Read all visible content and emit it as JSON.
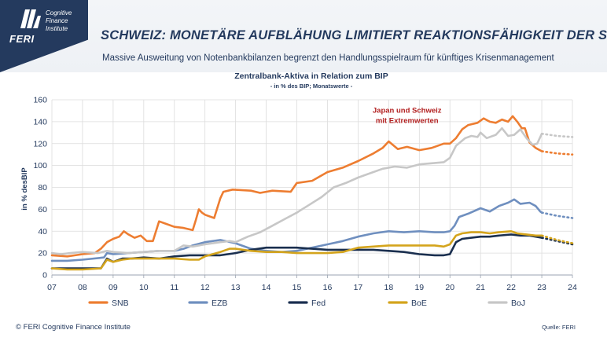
{
  "logo": {
    "brand": "FERI",
    "tagline": "Cognitive Finance Institute",
    "color": "#243a5e"
  },
  "header": {
    "title": "SCHWEIZ: MONETÄRE AUFBLÄHUNG LIMITIERT REAKTIONSFÄHIGKEIT DER SNB",
    "subtitle": "Massive Ausweitung von Notenbankbilanzen begrenzt den Handlungsspielraum für künftiges Krisenmanagement"
  },
  "footer": {
    "copyright": "© FERI Cognitive Finance Institute",
    "source": "Quelle: FERI"
  },
  "chart_data": {
    "type": "line",
    "title": "Zentralbank-Aktiva  in Relation zum BIP",
    "subtitle": "- in % des BIP; Monatswerte -",
    "ylabel": "in % desBIP",
    "xlabel": "",
    "ylim": [
      0,
      160
    ],
    "xlim": [
      7,
      24
    ],
    "yticks": [
      "0",
      "20",
      "40",
      "60",
      "80",
      "100",
      "120",
      "140",
      "160"
    ],
    "xticks": [
      "07",
      "08",
      "09",
      "10",
      "11",
      "12",
      "13",
      "14",
      "15",
      "16",
      "17",
      "18",
      "19",
      "20",
      "21",
      "22",
      "23",
      "24"
    ],
    "grid": true,
    "legend_position": "bottom",
    "annotation": {
      "text_line1": "Japan und Schweiz",
      "text_line2": "mit Extremwerten",
      "x": 18.6,
      "y": 148,
      "color": "#b21f1f"
    },
    "series": [
      {
        "name": "SNB",
        "color": "#ed7d31",
        "points": [
          [
            7.0,
            18
          ],
          [
            7.5,
            17
          ],
          [
            8.0,
            19
          ],
          [
            8.4,
            20
          ],
          [
            8.6,
            24
          ],
          [
            8.8,
            30
          ],
          [
            9.0,
            33
          ],
          [
            9.2,
            35
          ],
          [
            9.35,
            40
          ],
          [
            9.5,
            37
          ],
          [
            9.7,
            34
          ],
          [
            9.9,
            36
          ],
          [
            10.1,
            31
          ],
          [
            10.3,
            31
          ],
          [
            10.5,
            49
          ],
          [
            10.7,
            47
          ],
          [
            11.0,
            44
          ],
          [
            11.3,
            43
          ],
          [
            11.6,
            41
          ],
          [
            11.7,
            50
          ],
          [
            11.8,
            60
          ],
          [
            11.9,
            57
          ],
          [
            12.0,
            55
          ],
          [
            12.3,
            52
          ],
          [
            12.5,
            70
          ],
          [
            12.6,
            76
          ],
          [
            12.9,
            78
          ],
          [
            13.5,
            77
          ],
          [
            13.8,
            75
          ],
          [
            14.2,
            77
          ],
          [
            14.8,
            76
          ],
          [
            15.0,
            84
          ],
          [
            15.5,
            86
          ],
          [
            16.0,
            94
          ],
          [
            16.5,
            98
          ],
          [
            17.0,
            104
          ],
          [
            17.5,
            111
          ],
          [
            17.8,
            116
          ],
          [
            18.0,
            122
          ],
          [
            18.3,
            115
          ],
          [
            18.6,
            117
          ],
          [
            19.0,
            114
          ],
          [
            19.4,
            116
          ],
          [
            19.8,
            120
          ],
          [
            20.0,
            120
          ],
          [
            20.2,
            125
          ],
          [
            20.4,
            133
          ],
          [
            20.6,
            137
          ],
          [
            20.9,
            139
          ],
          [
            21.1,
            143
          ],
          [
            21.3,
            140
          ],
          [
            21.5,
            139
          ],
          [
            21.7,
            142
          ],
          [
            21.9,
            140
          ],
          [
            22.05,
            145
          ],
          [
            22.2,
            140
          ],
          [
            22.35,
            134
          ],
          [
            22.45,
            134
          ],
          [
            22.6,
            121
          ],
          [
            22.8,
            116
          ],
          [
            23.0,
            113
          ]
        ]
      },
      {
        "name": "SNB Prognose",
        "color": "#ed7d31",
        "dashed": true,
        "points": [
          [
            23.0,
            113
          ],
          [
            23.5,
            111
          ],
          [
            24.0,
            110
          ]
        ]
      },
      {
        "name": "EZB",
        "color": "#6f8fbf",
        "points": [
          [
            7.0,
            13
          ],
          [
            7.5,
            13
          ],
          [
            8.0,
            14
          ],
          [
            8.7,
            16
          ],
          [
            8.8,
            20
          ],
          [
            9.0,
            19
          ],
          [
            10.0,
            21
          ],
          [
            10.5,
            22
          ],
          [
            11.0,
            22
          ],
          [
            11.3,
            24
          ],
          [
            11.6,
            27
          ],
          [
            12.0,
            30
          ],
          [
            12.5,
            32
          ],
          [
            13.0,
            29
          ],
          [
            13.5,
            24
          ],
          [
            14.0,
            22
          ],
          [
            14.5,
            21
          ],
          [
            15.0,
            22
          ],
          [
            15.5,
            25
          ],
          [
            16.0,
            28
          ],
          [
            16.5,
            31
          ],
          [
            17.0,
            35
          ],
          [
            17.5,
            38
          ],
          [
            18.0,
            40
          ],
          [
            18.5,
            39
          ],
          [
            19.0,
            40
          ],
          [
            19.5,
            39
          ],
          [
            19.8,
            39
          ],
          [
            20.0,
            40
          ],
          [
            20.15,
            45
          ],
          [
            20.3,
            53
          ],
          [
            20.6,
            56
          ],
          [
            21.0,
            61
          ],
          [
            21.3,
            58
          ],
          [
            21.6,
            63
          ],
          [
            21.9,
            66
          ],
          [
            22.1,
            69
          ],
          [
            22.3,
            65
          ],
          [
            22.6,
            66
          ],
          [
            22.8,
            63
          ],
          [
            22.95,
            58
          ],
          [
            23.0,
            57
          ]
        ]
      },
      {
        "name": "EZB Prognose",
        "color": "#6f8fbf",
        "dashed": true,
        "points": [
          [
            23.0,
            57
          ],
          [
            23.5,
            54
          ],
          [
            24.0,
            52
          ]
        ]
      },
      {
        "name": "Fed",
        "color": "#1a2f4f",
        "points": [
          [
            7.0,
            6
          ],
          [
            7.5,
            6
          ],
          [
            8.0,
            6
          ],
          [
            8.6,
            6
          ],
          [
            8.8,
            15
          ],
          [
            9.0,
            12
          ],
          [
            9.3,
            15
          ],
          [
            9.6,
            15
          ],
          [
            10.0,
            16
          ],
          [
            10.5,
            15
          ],
          [
            11.0,
            17
          ],
          [
            11.5,
            18
          ],
          [
            12.0,
            18
          ],
          [
            12.5,
            18
          ],
          [
            13.0,
            20
          ],
          [
            13.5,
            23
          ],
          [
            14.0,
            25
          ],
          [
            14.5,
            25
          ],
          [
            15.0,
            25
          ],
          [
            15.5,
            24
          ],
          [
            16.0,
            23
          ],
          [
            16.5,
            23
          ],
          [
            17.0,
            23
          ],
          [
            17.5,
            23
          ],
          [
            18.0,
            22
          ],
          [
            18.5,
            21
          ],
          [
            19.0,
            19
          ],
          [
            19.5,
            18
          ],
          [
            19.8,
            18
          ],
          [
            20.0,
            19
          ],
          [
            20.2,
            30
          ],
          [
            20.4,
            33
          ],
          [
            20.7,
            34
          ],
          [
            21.0,
            35
          ],
          [
            21.3,
            35
          ],
          [
            21.6,
            36
          ],
          [
            22.0,
            37
          ],
          [
            22.3,
            36
          ],
          [
            22.6,
            36
          ],
          [
            23.0,
            34
          ]
        ]
      },
      {
        "name": "Fed Prognose",
        "color": "#1a2f4f",
        "dashed": true,
        "points": [
          [
            23.0,
            34
          ],
          [
            23.5,
            31
          ],
          [
            24.0,
            28
          ]
        ]
      },
      {
        "name": "BoE",
        "color": "#d4a41c",
        "points": [
          [
            7.0,
            6
          ],
          [
            7.5,
            5
          ],
          [
            8.0,
            5
          ],
          [
            8.6,
            6
          ],
          [
            8.8,
            14
          ],
          [
            9.0,
            12
          ],
          [
            9.3,
            14
          ],
          [
            9.6,
            15
          ],
          [
            10.0,
            15
          ],
          [
            10.5,
            15
          ],
          [
            11.0,
            15
          ],
          [
            11.5,
            14
          ],
          [
            11.8,
            14
          ],
          [
            12.0,
            17
          ],
          [
            12.5,
            21
          ],
          [
            12.8,
            24
          ],
          [
            13.0,
            24
          ],
          [
            13.5,
            22
          ],
          [
            14.0,
            21
          ],
          [
            14.5,
            21
          ],
          [
            15.0,
            20
          ],
          [
            15.5,
            20
          ],
          [
            16.0,
            20
          ],
          [
            16.5,
            21
          ],
          [
            17.0,
            25
          ],
          [
            17.5,
            26
          ],
          [
            18.0,
            27
          ],
          [
            18.5,
            27
          ],
          [
            19.0,
            27
          ],
          [
            19.5,
            27
          ],
          [
            19.8,
            26
          ],
          [
            20.0,
            28
          ],
          [
            20.2,
            36
          ],
          [
            20.4,
            38
          ],
          [
            20.7,
            39
          ],
          [
            21.0,
            39
          ],
          [
            21.3,
            38
          ],
          [
            21.6,
            39
          ],
          [
            22.0,
            40
          ],
          [
            22.2,
            38
          ],
          [
            22.5,
            37
          ],
          [
            22.8,
            36
          ],
          [
            23.0,
            36
          ]
        ]
      },
      {
        "name": "BoE Prognose",
        "color": "#d4a41c",
        "dashed": true,
        "points": [
          [
            23.0,
            36
          ],
          [
            23.5,
            32
          ],
          [
            24.0,
            29
          ]
        ]
      },
      {
        "name": "BoJ",
        "color": "#c7c7c7",
        "points": [
          [
            7.0,
            20
          ],
          [
            7.3,
            19
          ],
          [
            7.6,
            20
          ],
          [
            8.0,
            21
          ],
          [
            8.5,
            20
          ],
          [
            8.8,
            22
          ],
          [
            9.0,
            21
          ],
          [
            9.5,
            20
          ],
          [
            10.0,
            21
          ],
          [
            10.5,
            22
          ],
          [
            11.0,
            22
          ],
          [
            11.3,
            27
          ],
          [
            11.6,
            26
          ],
          [
            12.0,
            28
          ],
          [
            12.5,
            30
          ],
          [
            12.8,
            31
          ],
          [
            13.0,
            30
          ],
          [
            13.4,
            35
          ],
          [
            13.8,
            39
          ],
          [
            14.2,
            45
          ],
          [
            14.6,
            51
          ],
          [
            15.0,
            57
          ],
          [
            15.4,
            64
          ],
          [
            15.8,
            71
          ],
          [
            16.2,
            80
          ],
          [
            16.6,
            84
          ],
          [
            17.0,
            89
          ],
          [
            17.4,
            93
          ],
          [
            17.8,
            97
          ],
          [
            18.2,
            99
          ],
          [
            18.6,
            98
          ],
          [
            19.0,
            101
          ],
          [
            19.4,
            102
          ],
          [
            19.8,
            103
          ],
          [
            20.0,
            107
          ],
          [
            20.2,
            118
          ],
          [
            20.5,
            125
          ],
          [
            20.7,
            127
          ],
          [
            20.9,
            126
          ],
          [
            21.0,
            130
          ],
          [
            21.2,
            125
          ],
          [
            21.5,
            128
          ],
          [
            21.7,
            134
          ],
          [
            21.9,
            127
          ],
          [
            22.1,
            128
          ],
          [
            22.3,
            133
          ],
          [
            22.5,
            125
          ],
          [
            22.7,
            119
          ],
          [
            22.85,
            120
          ],
          [
            23.0,
            129
          ]
        ]
      },
      {
        "name": "BoJ Prognose",
        "color": "#c7c7c7",
        "dashed": true,
        "points": [
          [
            23.0,
            129
          ],
          [
            23.5,
            127
          ],
          [
            24.0,
            126
          ]
        ]
      }
    ],
    "legend": [
      {
        "label": "SNB",
        "color": "#ed7d31"
      },
      {
        "label": "EZB",
        "color": "#6f8fbf"
      },
      {
        "label": "Fed",
        "color": "#1a2f4f"
      },
      {
        "label": "BoE",
        "color": "#d4a41c"
      },
      {
        "label": "BoJ",
        "color": "#c7c7c7"
      }
    ]
  }
}
